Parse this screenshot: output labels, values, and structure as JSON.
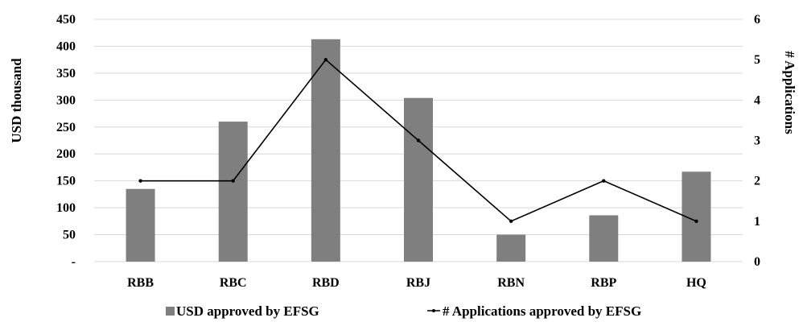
{
  "chart_data": {
    "type": "bar",
    "categories": [
      "RBB",
      "RBC",
      "RBD",
      "RBJ",
      "RBN",
      "RBP",
      "HQ"
    ],
    "series": [
      {
        "name": "USD approved by EFSG",
        "type": "bar",
        "axis": "left",
        "color": "#7f7f7f",
        "values": [
          135,
          260,
          413,
          304,
          50,
          86,
          167
        ]
      },
      {
        "name": "# Applications approved by EFSG",
        "type": "line",
        "axis": "right",
        "color": "#000000",
        "values": [
          2,
          2,
          5,
          3,
          1,
          2,
          1
        ]
      }
    ],
    "ylabel": "USD thousand",
    "y2label": "# Applications",
    "ylim": [
      0,
      450
    ],
    "y2lim": [
      0,
      6
    ],
    "yticks": [
      "-",
      "50",
      "100",
      "150",
      "200",
      "250",
      "300",
      "350",
      "400",
      "450"
    ],
    "y2ticks": [
      "0",
      "1",
      "2",
      "3",
      "4",
      "5",
      "6"
    ],
    "grid": true,
    "legend_position": "bottom"
  }
}
